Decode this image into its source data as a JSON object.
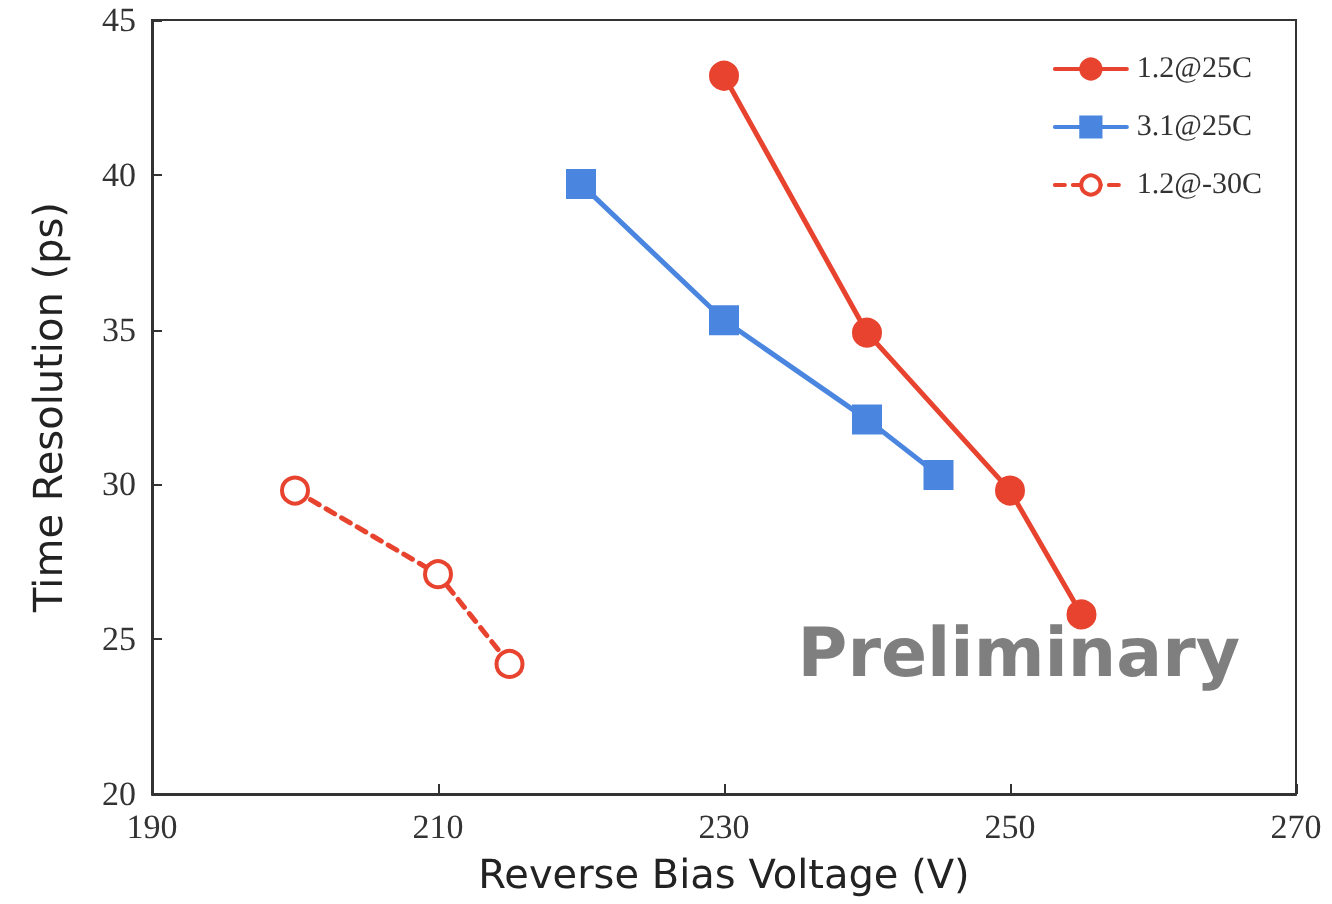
{
  "chart_data": {
    "type": "line",
    "xlabel": "Reverse Bias Voltage (V)",
    "ylabel": "Time Resolution (ps)",
    "xlim": [
      190,
      270
    ],
    "xticks": [
      190,
      210,
      230,
      250,
      270
    ],
    "ylim": [
      20,
      45
    ],
    "yticks": [
      20,
      25,
      30,
      35,
      40,
      45
    ],
    "grid": false,
    "legend": "top right",
    "annotations": [
      "Preliminary"
    ],
    "series": [
      {
        "name": "1.2@25C",
        "color": "#e8432f",
        "x": [
          230,
          240,
          250,
          255
        ],
        "values": [
          43.2,
          34.9,
          29.8,
          25.8
        ],
        "marker": "circle",
        "line_style": "solid"
      },
      {
        "name": "3.1@25C",
        "color": "#4a86e0",
        "x": [
          220,
          230,
          240,
          245
        ],
        "values": [
          39.7,
          35.3,
          32.1,
          30.3
        ],
        "marker": "square",
        "line_style": "solid"
      },
      {
        "name": "1.2@-30C",
        "color": "#e8432f",
        "x": [
          200,
          210,
          215
        ],
        "values": [
          29.8,
          27.1,
          24.2
        ],
        "marker": "circle",
        "line_style": "dashed"
      }
    ]
  }
}
